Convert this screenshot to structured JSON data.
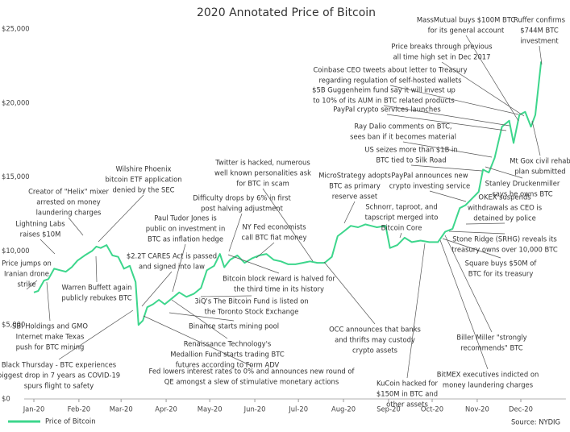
{
  "chart_data": {
    "type": "line",
    "title": "2020 Annotated Price of Bitcoin",
    "x": [
      0,
      3,
      7,
      10,
      14,
      18,
      22,
      26,
      30,
      35,
      40,
      43,
      46,
      50,
      54,
      58,
      62,
      66,
      70,
      72,
      75,
      78,
      82,
      86,
      90,
      95,
      100,
      105,
      110,
      115,
      119,
      124,
      128,
      131,
      135,
      140,
      145,
      150,
      155,
      160,
      165,
      170,
      175,
      180,
      185,
      190,
      195,
      200,
      205,
      209,
      213,
      218,
      223,
      228,
      232,
      236,
      242,
      245,
      250,
      255,
      260,
      266,
      272,
      278,
      283,
      288,
      293,
      297,
      302,
      306,
      309,
      313,
      317,
      322,
      327,
      330,
      334,
      338,
      342,
      345,
      347,
      349
    ],
    "series": [
      {
        "name": "Price of Bitcoin",
        "color": "#3dd68c",
        "values": [
          7200,
          7300,
          8000,
          8100,
          8800,
          8700,
          8600,
          8900,
          9350,
          9700,
          10000,
          10300,
          10200,
          10400,
          9700,
          9600,
          8800,
          9000,
          7900,
          5000,
          5300,
          6200,
          6400,
          6700,
          6400,
          6800,
          7200,
          6900,
          7100,
          7500,
          8700,
          9000,
          9800,
          8900,
          9400,
          9700,
          9200,
          9500,
          9700,
          9800,
          9400,
          9300,
          9100,
          9100,
          9200,
          9300,
          9200,
          9200,
          9600,
          11000,
          11300,
          11700,
          11600,
          11800,
          11700,
          11600,
          11700,
          10200,
          10400,
          10900,
          10600,
          10700,
          10600,
          10600,
          11300,
          11500,
          12900,
          13100,
          13600,
          14000,
          15500,
          15300,
          16300,
          18400,
          18800,
          17300,
          19200,
          19400,
          18400,
          19200,
          21000,
          22800
        ]
      }
    ],
    "xlim": [
      0,
      366
    ],
    "xticks": [
      {
        "value": 0,
        "label": "Jan-20"
      },
      {
        "value": 31,
        "label": "Feb-20"
      },
      {
        "value": 60,
        "label": "Mar-20"
      },
      {
        "value": 91,
        "label": "Apr-20"
      },
      {
        "value": 121,
        "label": "May-20"
      },
      {
        "value": 152,
        "label": "Jun-20"
      },
      {
        "value": 182,
        "label": "Jul-20"
      },
      {
        "value": 213,
        "label": "Aug-20"
      },
      {
        "value": 244,
        "label": "Sep-20"
      },
      {
        "value": 274,
        "label": "Oct-20"
      },
      {
        "value": 305,
        "label": "Nov-20"
      },
      {
        "value": 335,
        "label": "Dec-20"
      }
    ],
    "ylim": [
      0,
      25000
    ],
    "yticks": [
      {
        "value": 0,
        "label": "$0"
      },
      {
        "value": 5000,
        "label": "$5,000"
      },
      {
        "value": 10000,
        "label": "$10,000"
      },
      {
        "value": 15000,
        "label": "$15,000"
      },
      {
        "value": 20000,
        "label": "$20,000"
      },
      {
        "value": 25000,
        "label": "$25,000"
      }
    ],
    "grid": false,
    "legend": "bottom-left",
    "source": "Source: NYDIG",
    "annotations": [
      [
        "Price jumps on",
        "Iranian drone",
        "strike"
      ],
      [
        "Lightning Labs",
        "raises $10M"
      ],
      [
        "Creator of \"Helix\" mixer",
        "arrested on money",
        "laundering charges"
      ],
      [
        "Wilshire Phoenix",
        "bitcoin ETF application",
        "denied by the SEC"
      ],
      [
        "Warren Buffett again",
        "publicly rebukes BTC"
      ],
      [
        "SBI Holdings and GMO",
        "Internet make Texas",
        "push for BTC mining"
      ],
      [
        "Black Thursday - BTC experiences",
        "biggest drop in 7 years as COVID-19",
        "spurs flight to safety"
      ],
      [
        "$2.2T CARES Act is passed",
        "and signed into law"
      ],
      [
        "Paul Tudor Jones is",
        "public on investment in",
        "BTC as inflation hedge"
      ],
      [
        "Difficulty drops by 6% in first",
        "post halving adjustment"
      ],
      [
        "Twitter is hacked, numerous",
        "well known personalities ask",
        "for BTC in scam"
      ],
      [
        "NY Fed economists",
        "call BTC fiat money"
      ],
      [
        "Bitcoin block reward is halved for",
        "the third time in its history"
      ],
      [
        "3iQ's The Bitcoin Fund is listed on",
        "the Toronto Stock Exchange"
      ],
      [
        "Binance starts mining pool"
      ],
      [
        "Renaissance Technology's",
        "Medallion Fund starts trading BTC",
        "futures according to Form ADV"
      ],
      [
        "Fed lowers interest rates to 0% and announces new round of",
        "QE amongst a slew of stimulative monetary actions"
      ],
      [
        "MicroStrategy adopts",
        "BTC as primary",
        "reserve asset"
      ],
      [
        "OCC announces that banks",
        "and thrifts may custody",
        "crypto assets"
      ],
      [
        "Schnorr, taproot, and",
        "tapscript merged into",
        "Bitcoin Core"
      ],
      [
        "PayPal announces new",
        "crypto investing service"
      ],
      [
        "KuCoin hacked for",
        "$150M in BTC and",
        "other assets"
      ],
      [
        "BitMEX executives indicted on",
        "money laundering charges"
      ],
      [
        "Biller Miller \"strongly",
        "recommends\" BTC"
      ],
      [
        "Square buys $50M of",
        "BTC for its treasury"
      ],
      [
        "Stone Ridge (SRHG) reveals its",
        "treasury owns over 10,000 BTC"
      ],
      [
        "OKEX suspends",
        "withdrawals as CEO is",
        "detained by police"
      ],
      [
        "Stanley Druckenmiller",
        "says he owns BTC"
      ],
      [
        "Mt Gox civil rehab",
        "plan submitted"
      ],
      [
        "US seizes more than $1B in",
        "BTC tied to Silk Road"
      ],
      [
        "Ray Dalio comments on BTC,",
        "sees ban if it becomes material"
      ],
      [
        "PayPal crypto services launches"
      ],
      [
        "$5B Guggenheim fund say it will invest up",
        "to 10% of its AUM in BTC related products"
      ],
      [
        "Coinbase CEO tweets about letter to Treasury",
        "regarding regulation of self-hosted wallets"
      ],
      [
        "Price breaks through previous",
        "all time high set in Dec 2017"
      ],
      [
        "MassMutual buys $100M BTC",
        "for its general account"
      ],
      [
        "Ruffer confirms",
        "$744M BTC",
        "investment"
      ]
    ]
  }
}
